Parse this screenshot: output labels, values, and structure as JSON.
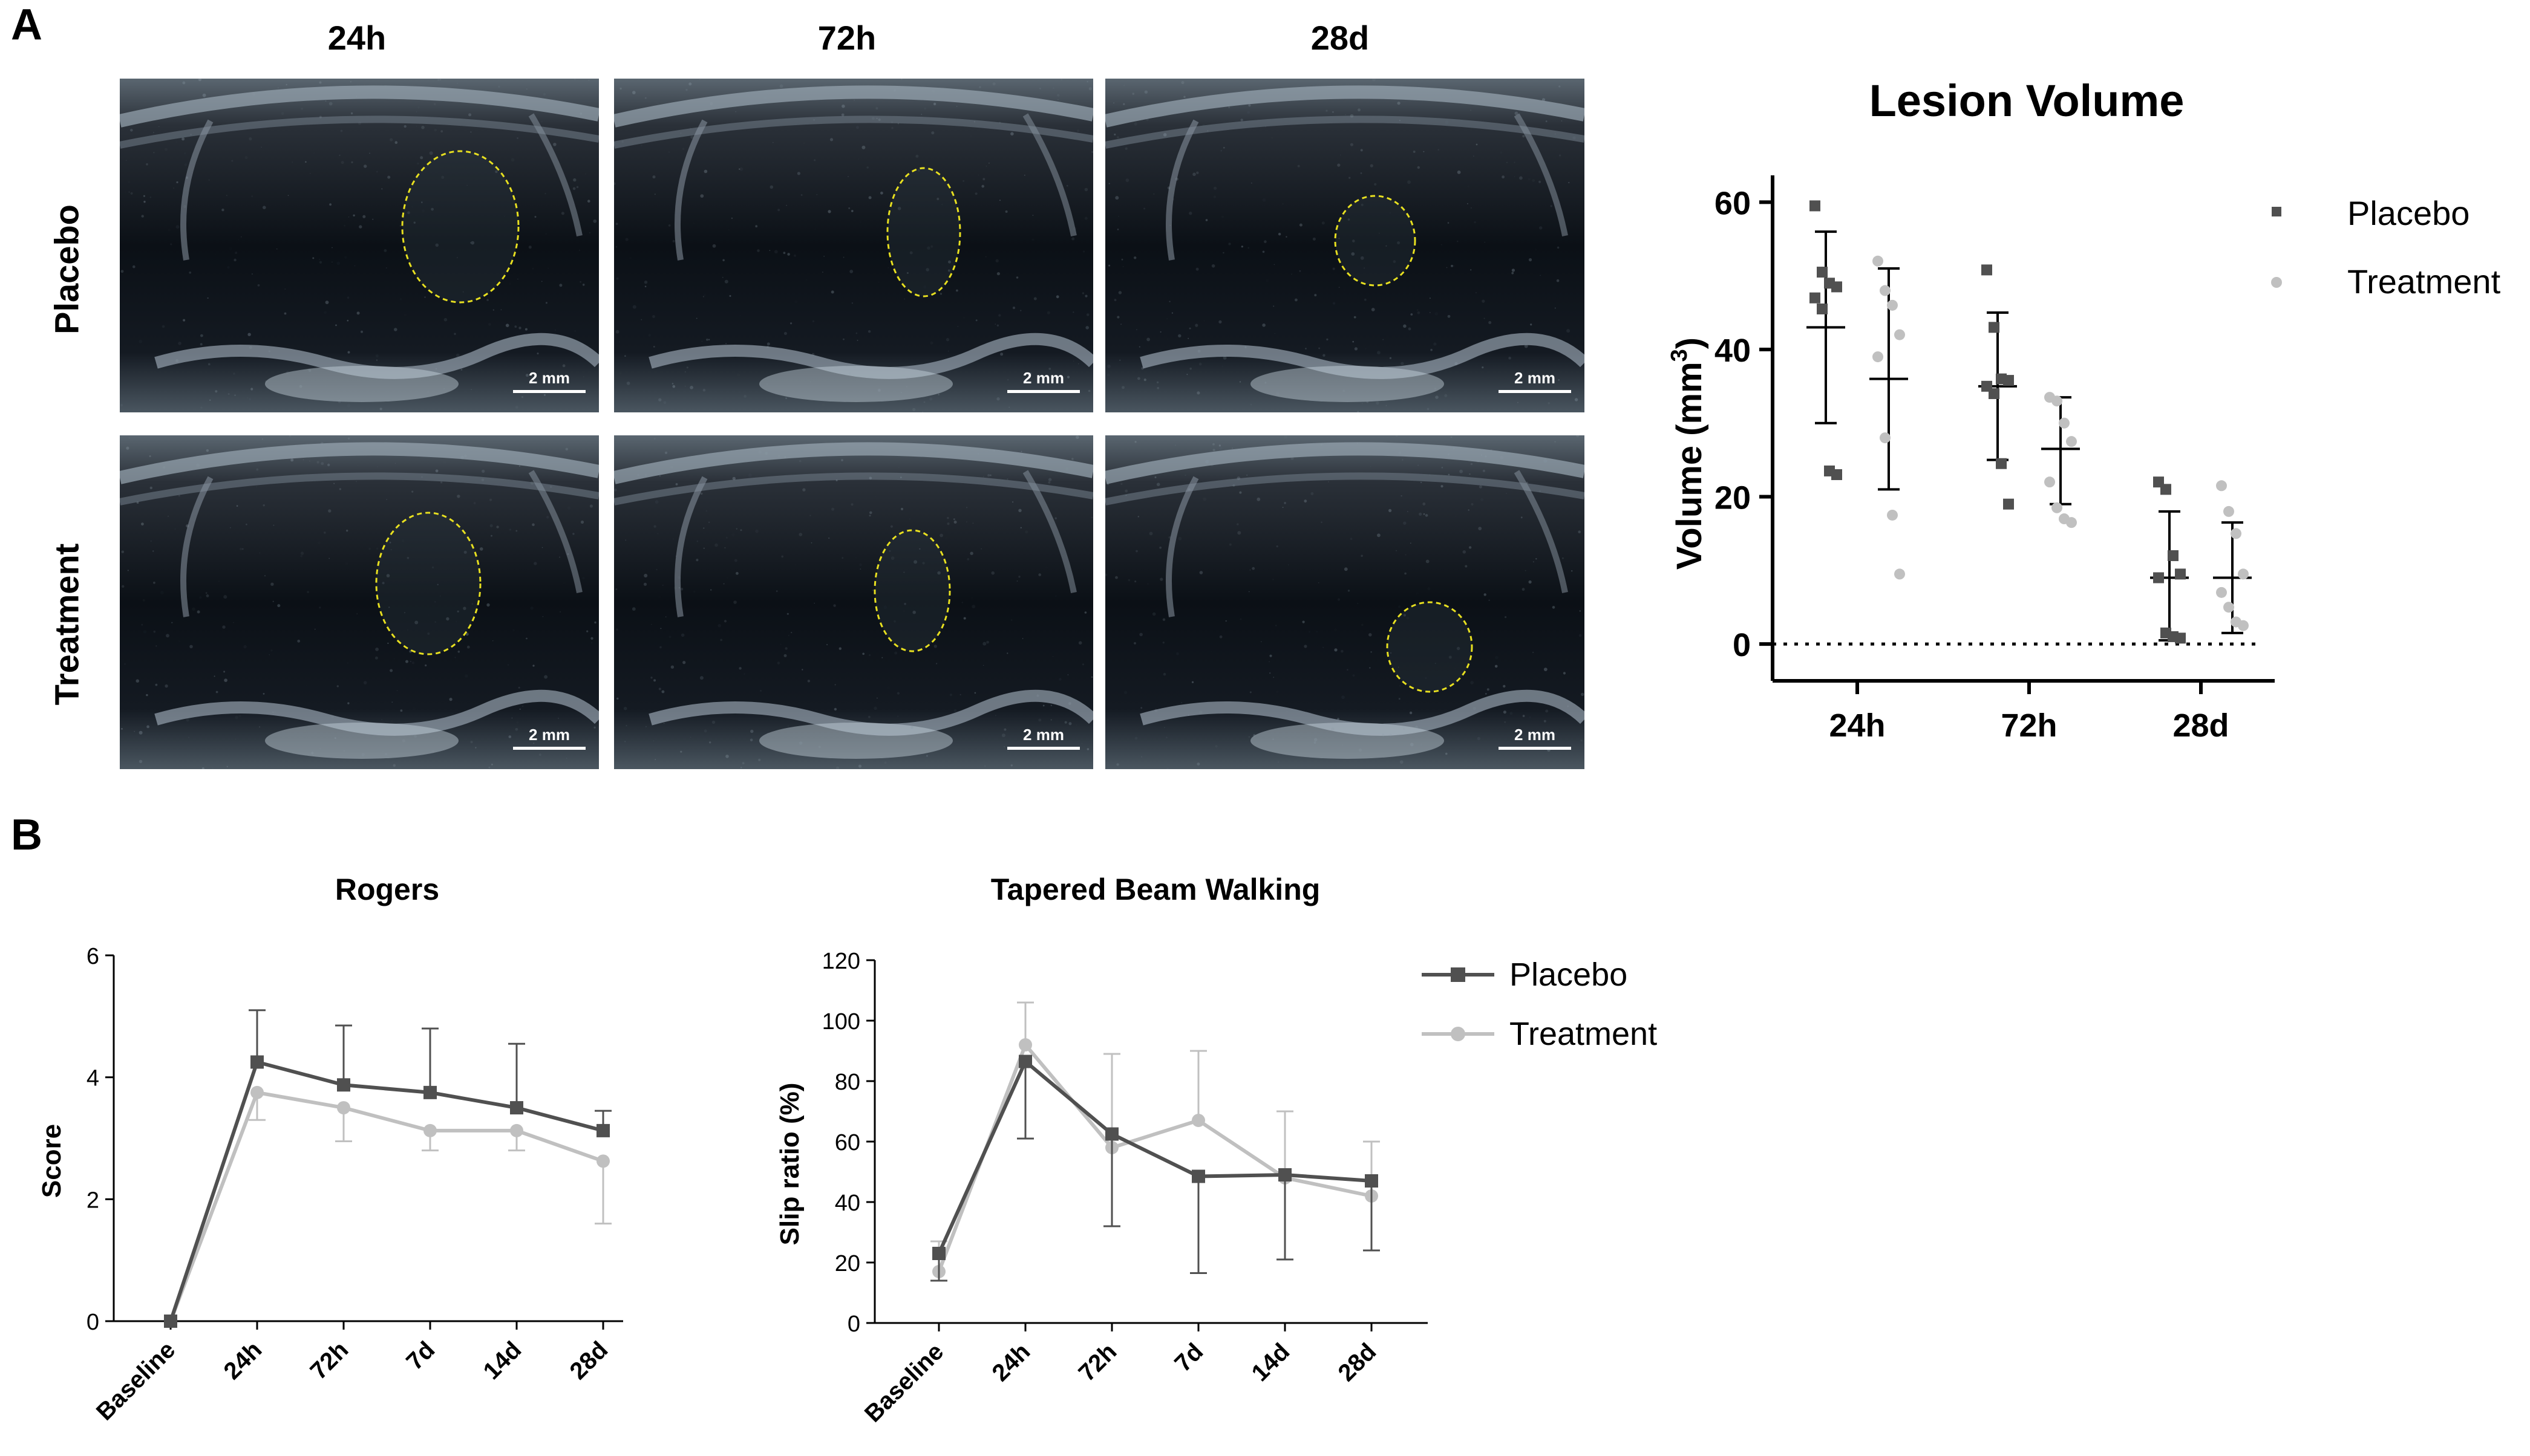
{
  "panel_a": {
    "letter": "A",
    "columns": [
      "24h",
      "72h",
      "28d"
    ],
    "rows": [
      "Placebo",
      "Treatment"
    ],
    "scale_label": "2 mm",
    "highlight_color": "#e8e020"
  },
  "panel_b": {
    "letter": "B"
  },
  "legend_lv": {
    "placebo": "Placebo",
    "treatment": "Treatment"
  },
  "legend_b": {
    "placebo": "Placebo",
    "treatment": "Treatment"
  },
  "colors": {
    "placebo": "#505050",
    "treatment": "#c0c0c0"
  },
  "chart_data": [
    {
      "type": "scatter",
      "title": "Lesion Volume",
      "ylabel": "Volume (mm3)",
      "ylabel_main": "Volume (mm",
      "ylabel_sup": "3",
      "ylabel_close": ")",
      "categories": [
        "24h",
        "72h",
        "28d"
      ],
      "ylim": [
        -5,
        62
      ],
      "yticks": [
        0,
        20,
        40,
        60
      ],
      "reference_line_y": 0,
      "series": [
        {
          "name": "Placebo",
          "points": [
            [
              59.5,
              50.5,
              49,
              48.5,
              47,
              45.5,
              23.5,
              23
            ],
            [
              50.8,
              43,
              36,
              35.8,
              35,
              34,
              24.5,
              19
            ],
            [
              22,
              21,
              12,
              9.5,
              9,
              1.5,
              1,
              0.8
            ]
          ],
          "mean": [
            43,
            35,
            9
          ],
          "sd_upper": [
            56,
            45,
            18
          ],
          "sd_lower": [
            30,
            25,
            0.5
          ]
        },
        {
          "name": "Treatment",
          "points": [
            [
              52,
              48,
              46,
              42,
              39,
              28,
              17.5,
              9.5
            ],
            [
              33.5,
              33,
              30,
              27.5,
              22,
              18.5,
              17,
              16.5
            ],
            [
              21.5,
              18,
              15,
              9.5,
              7,
              5,
              3,
              2.5
            ]
          ],
          "mean": [
            36,
            26.5,
            9
          ],
          "sd_upper": [
            51,
            33.5,
            16.5
          ],
          "sd_lower": [
            21,
            19,
            1.5
          ]
        }
      ]
    },
    {
      "type": "line",
      "title": "Rogers",
      "ylabel": "Score",
      "x": [
        "Baseline",
        "24h",
        "72h",
        "7d",
        "14d",
        "28d"
      ],
      "ylim": [
        0,
        6
      ],
      "yticks": [
        0,
        2,
        4,
        6
      ],
      "series": [
        {
          "name": "Placebo",
          "values": [
            0,
            4.25,
            3.875,
            3.75,
            3.5,
            3.125
          ],
          "error_upper": [
            0,
            5.1,
            4.85,
            4.8,
            4.55,
            3.45
          ]
        },
        {
          "name": "Treatment",
          "values": [
            0,
            3.75,
            3.5,
            3.125,
            3.125,
            2.625
          ],
          "error_lower": [
            0,
            3.3,
            2.95,
            2.8,
            2.8,
            1.6
          ]
        }
      ]
    },
    {
      "type": "line",
      "title": "Tapered Beam Walking",
      "ylabel": "Slip ratio (%)",
      "x": [
        "Baseline",
        "24h",
        "72h",
        "7d",
        "14d",
        "28d"
      ],
      "ylim": [
        0,
        120
      ],
      "yticks": [
        0,
        20,
        40,
        60,
        80,
        100,
        120
      ],
      "series": [
        {
          "name": "Placebo",
          "values": [
            23,
            86.5,
            62.5,
            48.5,
            49,
            47
          ],
          "error_upper": [
            23,
            86.5,
            62.5,
            48.5,
            49,
            47
          ],
          "error_lower": [
            14,
            61,
            32,
            16.5,
            21,
            24
          ]
        },
        {
          "name": "Treatment",
          "values": [
            17,
            92,
            58,
            67,
            48,
            42
          ],
          "error_upper": [
            27,
            106,
            89,
            90,
            70,
            60
          ],
          "error_lower": [
            17,
            92,
            58,
            67,
            48,
            42
          ]
        }
      ]
    }
  ]
}
